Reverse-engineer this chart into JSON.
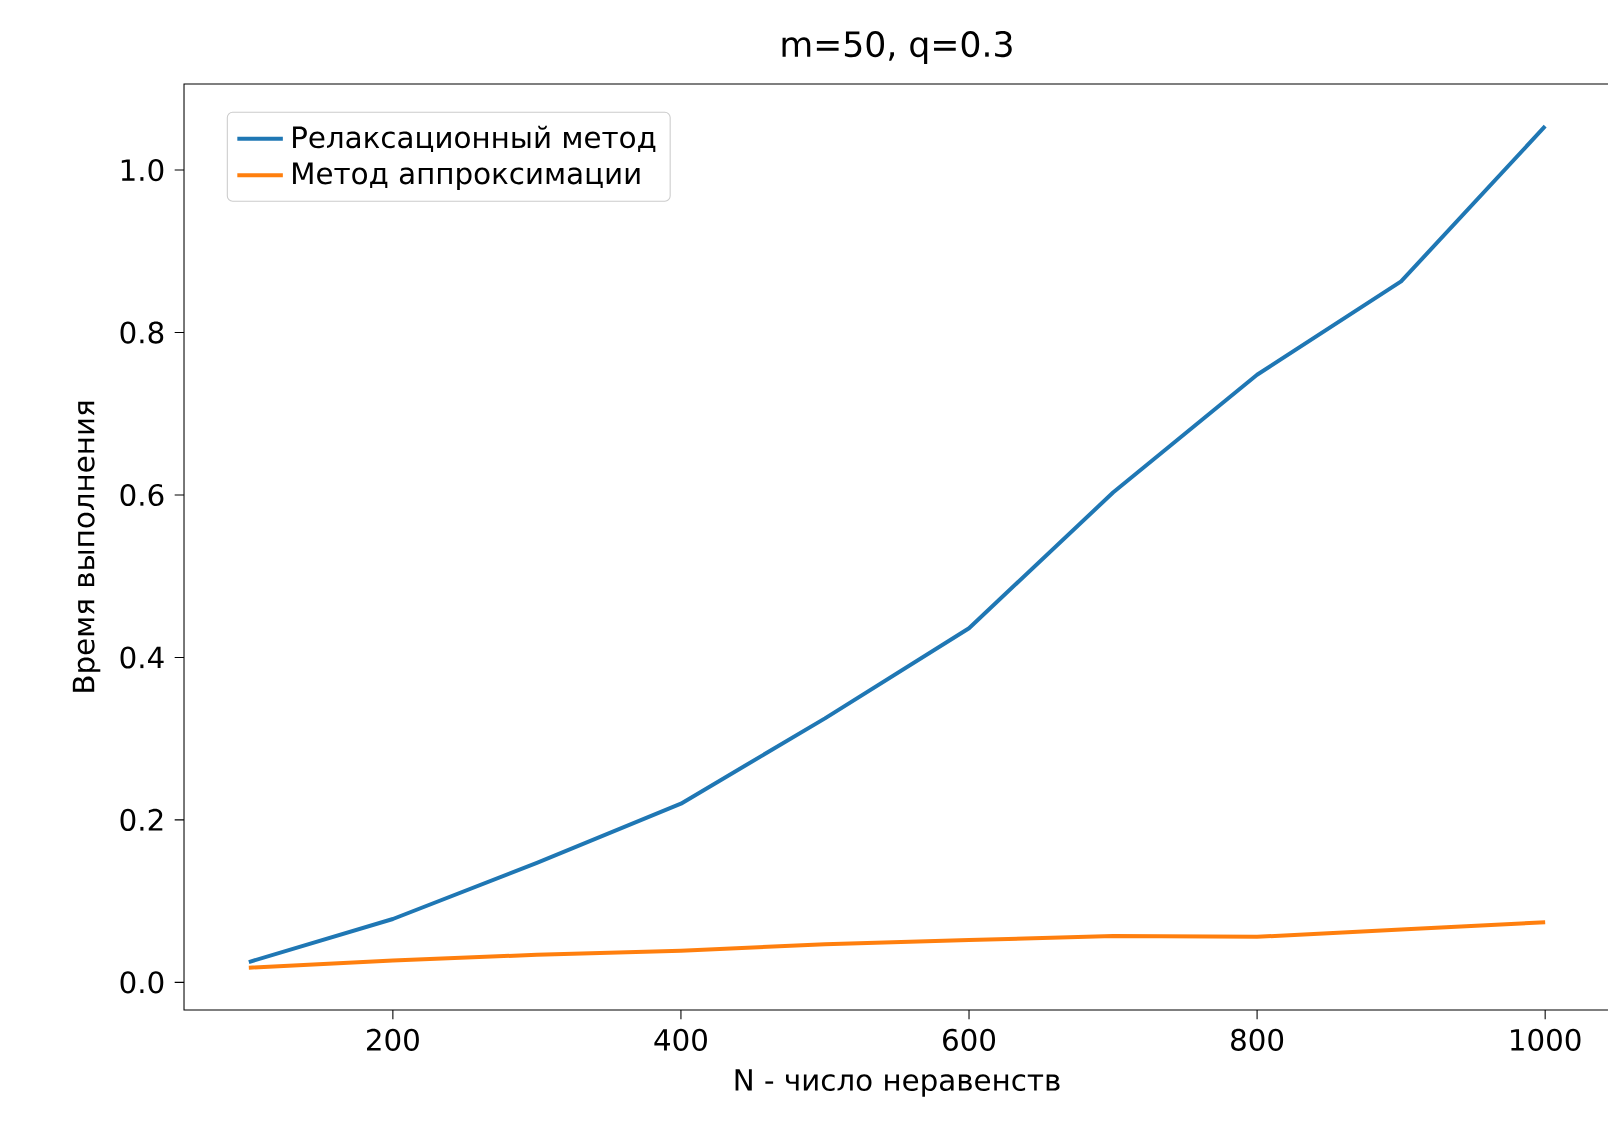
{
  "chart_data": {
    "type": "line",
    "title": "m=50, q=0.3",
    "xlabel": "N - число неравенств",
    "ylabel": "Время выполнения",
    "x": [
      100,
      200,
      300,
      400,
      500,
      600,
      700,
      800,
      900,
      1000
    ],
    "series": [
      {
        "name": "Релаксационный метод",
        "color": "#1f77b4",
        "values": [
          0.025,
          0.078,
          0.147,
          0.22,
          0.325,
          0.436,
          0.603,
          0.748,
          0.863,
          1.054
        ]
      },
      {
        "name": "Метод аппроксимации",
        "color": "#ff7f0e",
        "values": [
          0.018,
          0.027,
          0.034,
          0.039,
          0.047,
          0.052,
          0.057,
          0.056,
          0.065,
          0.074
        ]
      }
    ],
    "xlim": [
      55,
      1045
    ],
    "ylim": [
      -0.034,
      1.106
    ],
    "xticks": [
      200,
      400,
      600,
      800,
      1000
    ],
    "yticks": [
      {
        "value": 0,
        "label": "0.0"
      },
      {
        "value": 0.2,
        "label": "0.2"
      },
      {
        "value": 0.4,
        "label": "0.4"
      },
      {
        "value": 0.6,
        "label": "0.6"
      },
      {
        "value": 0.8,
        "label": "0.8"
      },
      {
        "value": 1.0,
        "label": "1.0"
      }
    ],
    "legend": "top left",
    "grid": false,
    "marker": "none",
    "line_style": "solid"
  }
}
